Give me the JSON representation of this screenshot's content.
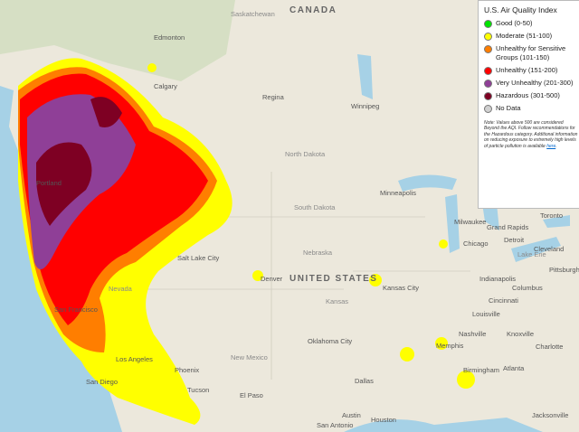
{
  "legend": {
    "title": "U.S. Air Quality Index",
    "items": [
      {
        "label": "Good (0-50)",
        "color": "#00e400"
      },
      {
        "label": "Moderate (51-100)",
        "color": "#ffff00"
      },
      {
        "label": "Unhealthy for Sensitive Groups (101-150)",
        "color": "#ff7e00"
      },
      {
        "label": "Unhealthy (151-200)",
        "color": "#ff0000"
      },
      {
        "label": "Very Unhealthy (201-300)",
        "color": "#8f3f97"
      },
      {
        "label": "Hazardous (301-500)",
        "color": "#7e0023"
      },
      {
        "label": "No Data",
        "color": "#d0d0d0"
      }
    ],
    "note": "Note: Values above 500 are considered Beyond the AQI. Follow recommendations for the Hazardous category. Additional information on reducing exposure to extremely high levels of particle pollution is available",
    "note_link": "here"
  },
  "places": [
    "CANADA",
    "Saskatchewan",
    "Edmonton",
    "Calgary",
    "Regina",
    "Winnipeg",
    "North Dakota",
    "Minneapolis",
    "South Dakota",
    "Portland",
    "Milwaukee",
    "Grand Rapids",
    "Toronto",
    "Chicago",
    "Detroit",
    "Cleveland",
    "Nebraska",
    "Salt Lake City",
    "Denver",
    "UNITED STATES",
    "Kansas City",
    "Indianapolis",
    "Pittsburgh",
    "Nevada",
    "Kansas",
    "Columbus",
    "Cincinnati",
    "San Francisco",
    "Louisville",
    "Nashville",
    "Knoxville",
    "Oklahoma City",
    "Memphis",
    "Charlotte",
    "Los Angeles",
    "Phoenix",
    "New Mexico",
    "Atlanta",
    "San Diego",
    "Tucson",
    "Dallas",
    "El Paso",
    "Birmingham",
    "Austin",
    "San Antonio",
    "Houston",
    "Jacksonville",
    "Lake Erie"
  ]
}
